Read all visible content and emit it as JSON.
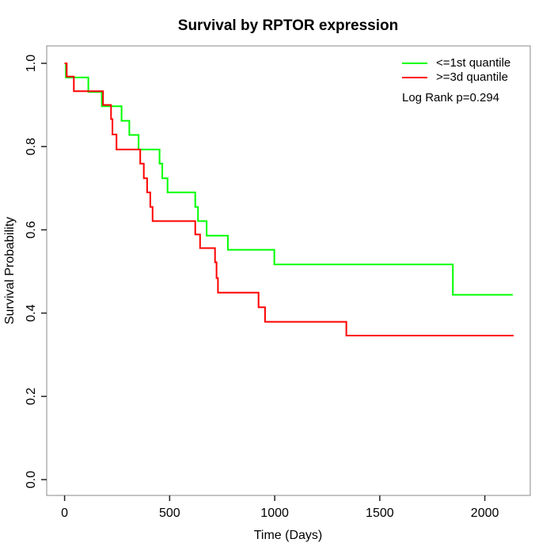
{
  "page": {
    "background": "#ffffff",
    "text_color": "#000000"
  },
  "chart_data": {
    "type": "line",
    "variant": "kaplan_meier_step",
    "title": "Survival by RPTOR expression",
    "xlabel": "Time (Days)",
    "ylabel": "Survival Probability",
    "x_ticks": [
      0,
      500,
      1000,
      1500,
      2000
    ],
    "y_ticks": [
      0.0,
      0.2,
      0.4,
      0.6,
      0.8,
      1.0
    ],
    "xlim": [
      0,
      2140
    ],
    "ylim": [
      0.0,
      1.0
    ],
    "grid": false,
    "legend_position": "top-right-inside",
    "annotation": "Log Rank p=0.294",
    "box_color": "#8a8a8a",
    "axis_tick_color": "#222222",
    "series": [
      {
        "name": "<=1st quantile",
        "color": "#00ff00",
        "end_time": 2133,
        "steps": [
          [
            0,
            1.0
          ],
          [
            6,
            0.966
          ],
          [
            113,
            0.931
          ],
          [
            177,
            0.897
          ],
          [
            271,
            0.862
          ],
          [
            308,
            0.828
          ],
          [
            352,
            0.793
          ],
          [
            452,
            0.759
          ],
          [
            465,
            0.724
          ],
          [
            490,
            0.69
          ],
          [
            622,
            0.655
          ],
          [
            635,
            0.621
          ],
          [
            676,
            0.586
          ],
          [
            777,
            0.552
          ],
          [
            998,
            0.517
          ],
          [
            1848,
            0.444
          ]
        ]
      },
      {
        "name": ">=3d quantile",
        "color": "#ff0000",
        "end_time": 2137,
        "steps": [
          [
            0,
            1.0
          ],
          [
            10,
            0.968
          ],
          [
            44,
            0.933
          ],
          [
            183,
            0.9
          ],
          [
            221,
            0.866
          ],
          [
            228,
            0.829
          ],
          [
            247,
            0.793
          ],
          [
            360,
            0.759
          ],
          [
            377,
            0.724
          ],
          [
            393,
            0.69
          ],
          [
            408,
            0.655
          ],
          [
            419,
            0.621
          ],
          [
            622,
            0.589
          ],
          [
            645,
            0.556
          ],
          [
            716,
            0.522
          ],
          [
            723,
            0.484
          ],
          [
            730,
            0.449
          ],
          [
            923,
            0.414
          ],
          [
            954,
            0.379
          ],
          [
            1341,
            0.346
          ]
        ]
      }
    ]
  }
}
